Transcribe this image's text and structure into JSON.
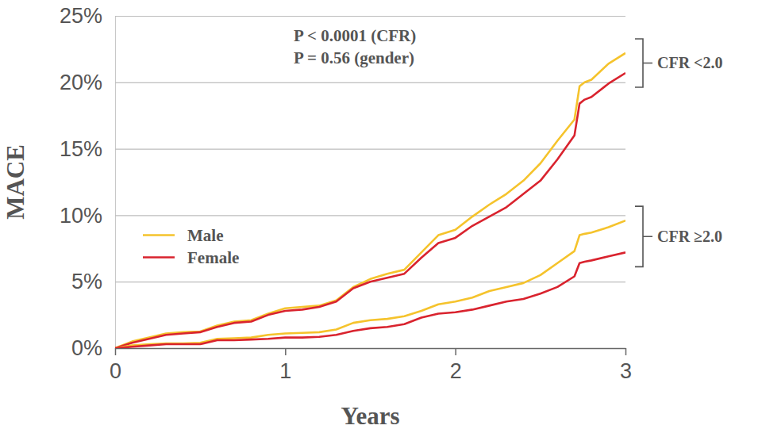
{
  "chart_data": {
    "type": "line",
    "x_label": "Years",
    "y_label": "MACE",
    "annotations": [
      "P < 0.0001 (CFR)",
      "P = 0.56 (gender)"
    ],
    "x": [
      0,
      0.1,
      0.2,
      0.3,
      0.4,
      0.5,
      0.6,
      0.7,
      0.8,
      0.9,
      1.0,
      1.1,
      1.2,
      1.3,
      1.4,
      1.5,
      1.6,
      1.7,
      1.8,
      1.9,
      2.0,
      2.1,
      2.2,
      2.3,
      2.4,
      2.5,
      2.6,
      2.7,
      2.73,
      2.76,
      2.8,
      2.9,
      3.0
    ],
    "series": [
      {
        "name": "Male",
        "group": "CFR <2.0",
        "color": "#f5c32c",
        "values": [
          0,
          0.5,
          0.8,
          1.1,
          1.2,
          1.25,
          1.7,
          2.0,
          2.1,
          2.6,
          3.0,
          3.1,
          3.2,
          3.6,
          4.6,
          5.2,
          5.6,
          5.9,
          7.2,
          8.5,
          8.9,
          9.9,
          10.8,
          11.6,
          12.6,
          13.9,
          15.6,
          17.2,
          19.7,
          20.0,
          20.2,
          21.4,
          22.2
        ]
      },
      {
        "name": "Female",
        "group": "CFR <2.0",
        "color": "#d9232e",
        "values": [
          0,
          0.4,
          0.7,
          1.0,
          1.1,
          1.2,
          1.6,
          1.9,
          2.0,
          2.5,
          2.8,
          2.9,
          3.1,
          3.5,
          4.5,
          5.0,
          5.3,
          5.6,
          6.8,
          7.9,
          8.3,
          9.2,
          9.9,
          10.6,
          11.6,
          12.6,
          14.2,
          16.0,
          18.4,
          18.7,
          18.9,
          19.9,
          20.7
        ]
      },
      {
        "name": "Male",
        "group": "CFR ≥2.0",
        "color": "#f5c32c",
        "values": [
          0,
          0.2,
          0.3,
          0.35,
          0.35,
          0.4,
          0.7,
          0.75,
          0.8,
          1.0,
          1.1,
          1.15,
          1.2,
          1.4,
          1.9,
          2.1,
          2.2,
          2.4,
          2.8,
          3.3,
          3.5,
          3.8,
          4.3,
          4.6,
          4.9,
          5.5,
          6.4,
          7.3,
          8.5,
          8.6,
          8.7,
          9.1,
          9.6
        ]
      },
      {
        "name": "Female",
        "group": "CFR ≥2.0",
        "color": "#d9232e",
        "values": [
          0,
          0.1,
          0.2,
          0.3,
          0.3,
          0.3,
          0.6,
          0.6,
          0.65,
          0.7,
          0.8,
          0.8,
          0.85,
          1.0,
          1.3,
          1.5,
          1.6,
          1.8,
          2.3,
          2.6,
          2.7,
          2.9,
          3.2,
          3.5,
          3.7,
          4.1,
          4.6,
          5.4,
          6.4,
          6.5,
          6.6,
          6.9,
          7.2
        ]
      }
    ],
    "xlim": [
      0,
      3
    ],
    "xticks": [
      0,
      1,
      2,
      3
    ],
    "ylim": [
      0,
      25
    ],
    "yticks": [
      {
        "value": 0,
        "label": "0%"
      },
      {
        "value": 5,
        "label": "5%"
      },
      {
        "value": 10,
        "label": "10%"
      },
      {
        "value": 15,
        "label": "15%"
      },
      {
        "value": 20,
        "label": "20%"
      },
      {
        "value": 25,
        "label": "25%"
      }
    ],
    "grid": true,
    "legend": "left"
  }
}
